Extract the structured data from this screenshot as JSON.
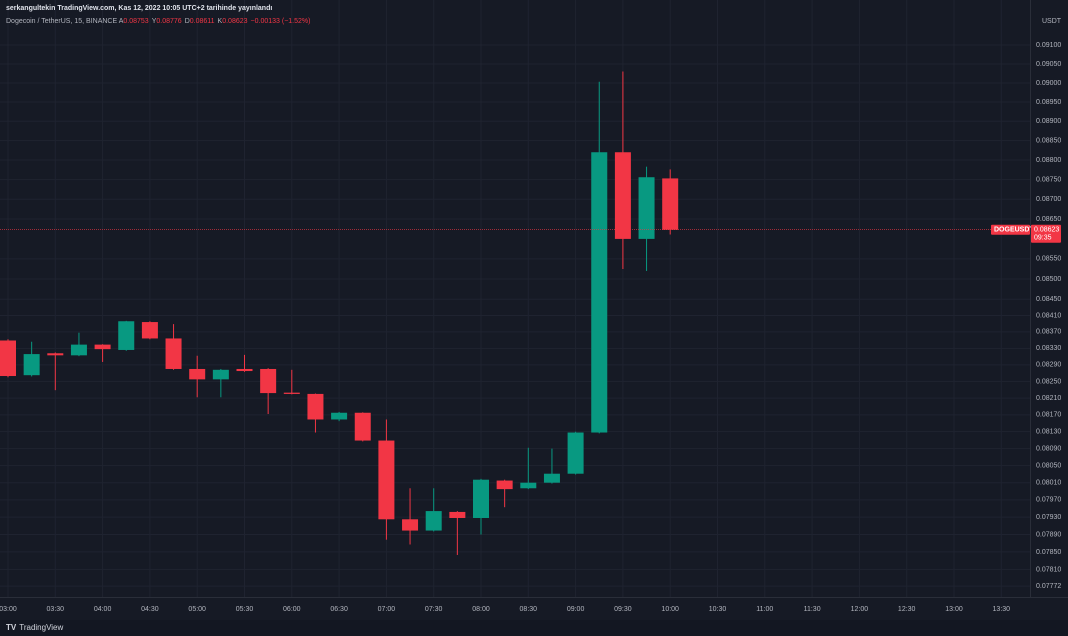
{
  "header": {
    "publisher": "serkangultekin TradingView.com, Kas 12, 2022 10:05 UTC+2 tarihinde yayınlandı",
    "symbol": "Dogecoin / TetherUS, 15, BINANCE",
    "ohlc": [
      {
        "key": "A",
        "value": "0.08753"
      },
      {
        "key": "Y",
        "value": "0.08776"
      },
      {
        "key": "D",
        "value": "0.08611"
      },
      {
        "key": "K",
        "value": "0.08623"
      }
    ],
    "change": "−0.00133 (−1.52%)"
  },
  "chart_data": {
    "type": "candlestick",
    "x": [
      "03:00",
      "03:15",
      "03:30",
      "03:45",
      "04:00",
      "04:15",
      "04:30",
      "04:45",
      "05:00",
      "05:15",
      "05:30",
      "05:45",
      "06:00",
      "06:15",
      "06:30",
      "06:45",
      "07:00",
      "07:15",
      "07:30",
      "07:45",
      "08:00",
      "08:15",
      "08:30",
      "08:45",
      "09:00",
      "09:15",
      "09:30",
      "09:45",
      "10:00"
    ],
    "open": [
      0.08349,
      0.08265,
      0.08318,
      0.08313,
      0.08339,
      0.08326,
      0.08394,
      0.08354,
      0.0828,
      0.08255,
      0.0828,
      0.0828,
      0.08223,
      0.0822,
      0.08159,
      0.08175,
      0.08109,
      0.07925,
      0.07899,
      0.07942,
      0.07928,
      0.08015,
      0.07997,
      0.0801,
      0.08031,
      0.08128,
      0.0882,
      0.086,
      0.08753
    ],
    "high": [
      0.08352,
      0.08346,
      0.0832,
      0.08368,
      0.0834,
      0.08397,
      0.08396,
      0.08389,
      0.08312,
      0.0828,
      0.08314,
      0.08282,
      0.08278,
      0.08221,
      0.08177,
      0.08176,
      0.08159,
      0.07997,
      0.07997,
      0.07944,
      0.08019,
      0.08017,
      0.08092,
      0.0809,
      0.0813,
      0.09003,
      0.0903,
      0.08783,
      0.08776
    ],
    "low": [
      0.0826,
      0.08262,
      0.08229,
      0.08311,
      0.08297,
      0.08324,
      0.08352,
      0.08278,
      0.08212,
      0.08212,
      0.08273,
      0.08172,
      0.08219,
      0.08128,
      0.08155,
      0.08107,
      0.07878,
      0.07867,
      0.07897,
      0.07843,
      0.0789,
      0.07953,
      0.07995,
      0.08008,
      0.08029,
      0.08126,
      0.08525,
      0.0852,
      0.08611
    ],
    "close": [
      0.08263,
      0.08316,
      0.08313,
      0.08339,
      0.08328,
      0.08396,
      0.08354,
      0.0828,
      0.08255,
      0.08278,
      0.08275,
      0.08222,
      0.0822,
      0.08159,
      0.08175,
      0.08109,
      0.07925,
      0.07899,
      0.07944,
      0.07928,
      0.08017,
      0.07995,
      0.0801,
      0.08031,
      0.08128,
      0.0882,
      0.086,
      0.08756,
      0.08623
    ],
    "up_color": "#089981",
    "down_color": "#f23645",
    "ylim": [
      0.07752,
      0.0914
    ],
    "log_scale": true,
    "grid": true,
    "yticks": [
      {
        "value": 0.091,
        "label": "0.09100"
      },
      {
        "value": 0.0905,
        "label": "0.09050"
      },
      {
        "value": 0.09,
        "label": "0.09000"
      },
      {
        "value": 0.0895,
        "label": "0.08950"
      },
      {
        "value": 0.089,
        "label": "0.08900"
      },
      {
        "value": 0.0885,
        "label": "0.08850"
      },
      {
        "value": 0.088,
        "label": "0.08800"
      },
      {
        "value": 0.0875,
        "label": "0.08750"
      },
      {
        "value": 0.087,
        "label": "0.08700"
      },
      {
        "value": 0.0865,
        "label": "0.08650"
      },
      {
        "value": 0.0855,
        "label": "0.08550"
      },
      {
        "value": 0.085,
        "label": "0.08500"
      },
      {
        "value": 0.0845,
        "label": "0.08450"
      },
      {
        "value": 0.0841,
        "label": "0.08410"
      },
      {
        "value": 0.0837,
        "label": "0.08370"
      },
      {
        "value": 0.0833,
        "label": "0.08330"
      },
      {
        "value": 0.0829,
        "label": "0.08290"
      },
      {
        "value": 0.0825,
        "label": "0.08250"
      },
      {
        "value": 0.0821,
        "label": "0.08210"
      },
      {
        "value": 0.0817,
        "label": "0.08170"
      },
      {
        "value": 0.0813,
        "label": "0.08130"
      },
      {
        "value": 0.0809,
        "label": "0.08090"
      },
      {
        "value": 0.0805,
        "label": "0.08050"
      },
      {
        "value": 0.0801,
        "label": "0.08010"
      },
      {
        "value": 0.0797,
        "label": "0.07970"
      },
      {
        "value": 0.0793,
        "label": "0.07930"
      },
      {
        "value": 0.0789,
        "label": "0.07890"
      },
      {
        "value": 0.0785,
        "label": "0.07850"
      },
      {
        "value": 0.0781,
        "label": "0.07810"
      },
      {
        "value": 0.07772,
        "label": "0.07772"
      }
    ],
    "xticks": [
      "03:00",
      "03:30",
      "04:00",
      "04:30",
      "05:00",
      "05:30",
      "06:00",
      "06:30",
      "07:00",
      "07:30",
      "08:00",
      "08:30",
      "09:00",
      "09:30",
      "10:00",
      "10:30",
      "11:00",
      "11:30",
      "12:00",
      "12:30",
      "13:00",
      "13:30"
    ],
    "y_unit": "USDT",
    "symbol_tag": "DOGEUSDT",
    "countdown": "09:35"
  },
  "footer": {
    "brand": "TradingView"
  }
}
